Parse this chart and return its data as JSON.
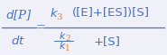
{
  "background_color": "#f0f0f8",
  "text_color": "#4472c4",
  "subscript_color": "#ed7d31",
  "figsize": [
    1.85,
    0.62
  ],
  "dpi": 100,
  "lhs_num": "d[\\mathrm{P}]",
  "lhs_den": "dt",
  "rhs_num": "k_3([\\mathrm{E}]+[\\mathrm{ES}])[\\mathrm{S}]",
  "rhs_den_num": "k_2",
  "rhs_den_den": "k_1",
  "rhs_extra": "+[\\mathrm{S}]"
}
